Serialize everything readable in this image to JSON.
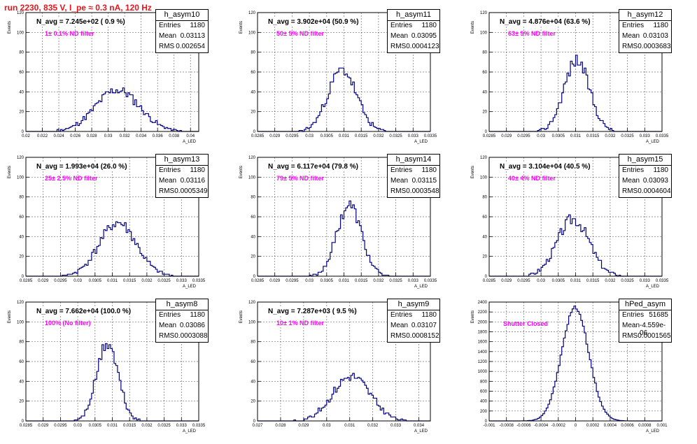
{
  "canvas_title": "run 2230,   835 V, I_pe ≈ 0.3 nA, 120 Hz",
  "colors": {
    "line": "#000080",
    "filter_label": "#ff00ff",
    "title": "#e8141c"
  },
  "chart_data": [
    {
      "type": "bar",
      "name": "h_asym10",
      "title": "h_asym10",
      "navg": "N_avg = 7.245e+02 ( 0.9 %)",
      "filter": "1± 0.1% ND filter",
      "stats": [
        [
          "Entries",
          "1180"
        ],
        [
          "Mean",
          "0.03113"
        ],
        [
          "RMS",
          "0.002654"
        ]
      ],
      "xlabel": "A_LED",
      "ylabel": "Events",
      "xlim": [
        0.02,
        0.041
      ],
      "ylim": [
        0,
        120
      ],
      "xticks": [
        "0.02",
        "0.022",
        "0.024",
        "0.026",
        "0.028",
        "0.03",
        "0.032",
        "0.034",
        "0.036",
        "0.038",
        "0.04"
      ],
      "yticks": [
        "0",
        "20",
        "40",
        "60",
        "80",
        "100",
        "120"
      ],
      "mean": 0.03113,
      "sigma": 0.002654,
      "peak": 42,
      "seed": 11
    },
    {
      "type": "bar",
      "name": "h_asym11",
      "title": "h_asym11",
      "navg": "N_avg = 3.902e+04 (50.9 %)",
      "filter": "50± 5% ND filter",
      "stats": [
        [
          "Entries",
          "1180"
        ],
        [
          "Mean",
          "0.03095"
        ],
        [
          "RMS",
          "0.0004123"
        ]
      ],
      "xlabel": "A_LED",
      "ylabel": "Events",
      "xlim": [
        0.0285,
        0.0335
      ],
      "ylim": [
        0,
        120
      ],
      "xticks": [
        "0.0285",
        "0.029",
        "0.0295",
        "0.03",
        "0.0305",
        "0.031",
        "0.0315",
        "0.032",
        "0.0325",
        "0.033",
        "0.0335"
      ],
      "yticks": [
        "0",
        "20",
        "40",
        "60",
        "80",
        "100",
        "120"
      ],
      "mean": 0.03095,
      "sigma": 0.0004123,
      "peak": 62,
      "seed": 23
    },
    {
      "type": "bar",
      "name": "h_asym12",
      "title": "h_asym12",
      "navg": "N_avg = 4.876e+04 (63.6 %)",
      "filter": "63± 5% ND filter",
      "stats": [
        [
          "Entries",
          "1180"
        ],
        [
          "Mean",
          "0.03103"
        ],
        [
          "RMS",
          "0.0003683"
        ]
      ],
      "xlabel": "A_LED",
      "ylabel": "Events",
      "xlim": [
        0.0285,
        0.0335
      ],
      "ylim": [
        0,
        120
      ],
      "xticks": [
        "0.0285",
        "0.029",
        "0.0295",
        "0.03",
        "0.0305",
        "0.031",
        "0.0315",
        "0.032",
        "0.0325",
        "0.033",
        "0.0335"
      ],
      "yticks": [
        "0",
        "20",
        "40",
        "60",
        "80",
        "100",
        "120"
      ],
      "mean": 0.03103,
      "sigma": 0.0003683,
      "peak": 72,
      "seed": 37
    },
    {
      "type": "bar",
      "name": "h_asym13",
      "title": "h_asym13",
      "navg": "N_avg = 1.993e+04 (26.0 %)",
      "filter": "25± 2.5% ND filter",
      "stats": [
        [
          "Entries",
          "1180"
        ],
        [
          "Mean",
          "0.03116"
        ],
        [
          "RMS",
          "0.0005349"
        ]
      ],
      "xlabel": "A_LED",
      "ylabel": "Events",
      "xlim": [
        0.0285,
        0.0335
      ],
      "ylim": [
        0,
        120
      ],
      "xticks": [
        "0.0285",
        "0.029",
        "0.0295",
        "0.03",
        "0.0305",
        "0.031",
        "0.0315",
        "0.032",
        "0.0325",
        "0.033",
        "0.0335"
      ],
      "yticks": [
        "0",
        "20",
        "40",
        "60",
        "80",
        "100",
        "120"
      ],
      "mean": 0.03116,
      "sigma": 0.0005349,
      "peak": 54,
      "seed": 41
    },
    {
      "type": "bar",
      "name": "h_asym14",
      "title": "h_asym14",
      "navg": "N_avg = 6.117e+04 (79.8 %)",
      "filter": "79± 5% ND filter",
      "stats": [
        [
          "Entries",
          "1180"
        ],
        [
          "Mean",
          "0.03115"
        ],
        [
          "RMS",
          "0.0003548"
        ]
      ],
      "xlabel": "A_LED",
      "ylabel": "Events",
      "xlim": [
        0.0285,
        0.0335
      ],
      "ylim": [
        0,
        120
      ],
      "xticks": [
        "0.0285",
        "0.029",
        "0.0295",
        "0.03",
        "0.0305",
        "0.031",
        "0.0315",
        "0.032",
        "0.0325",
        "0.033",
        "0.0335"
      ],
      "yticks": [
        "0",
        "20",
        "40",
        "60",
        "80",
        "100",
        "120"
      ],
      "mean": 0.03115,
      "sigma": 0.0003548,
      "peak": 72,
      "seed": 53
    },
    {
      "type": "bar",
      "name": "h_asym15",
      "title": "h_asym15",
      "navg": "N_avg = 3.104e+04 (40.5 %)",
      "filter": "40± 4% ND filter",
      "stats": [
        [
          "Entries",
          "1180"
        ],
        [
          "Mean",
          "0.03093"
        ],
        [
          "RMS",
          "0.0004604"
        ]
      ],
      "xlabel": "A_LED",
      "ylabel": "Events",
      "xlim": [
        0.0285,
        0.0335
      ],
      "ylim": [
        0,
        120
      ],
      "xticks": [
        "0.0285",
        "0.029",
        "0.0295",
        "0.03",
        "0.0305",
        "0.031",
        "0.0315",
        "0.032",
        "0.0325",
        "0.033",
        "0.0335"
      ],
      "yticks": [
        "0",
        "20",
        "40",
        "60",
        "80",
        "100",
        "120"
      ],
      "mean": 0.03093,
      "sigma": 0.0004604,
      "peak": 58,
      "seed": 67
    },
    {
      "type": "bar",
      "name": "h_asym8",
      "title": "h_asym8",
      "navg": "N_avg = 7.662e+04 (100.0 %)",
      "filter": "100% (No filter)",
      "stats": [
        [
          "Entries",
          "1180"
        ],
        [
          "Mean",
          "0.03086"
        ],
        [
          "RMS",
          "0.0003088"
        ]
      ],
      "xlabel": "A_LED",
      "ylabel": "Events",
      "xlim": [
        0.0285,
        0.0335
      ],
      "ylim": [
        0,
        120
      ],
      "xticks": [
        "0.0285",
        "0.029",
        "0.0295",
        "0.03",
        "0.0305",
        "0.031",
        "0.0315",
        "0.032",
        "0.0325",
        "0.033",
        "0.0335"
      ],
      "yticks": [
        "0",
        "20",
        "40",
        "60",
        "80",
        "100",
        "120"
      ],
      "mean": 0.03086,
      "sigma": 0.0003088,
      "peak": 78,
      "seed": 71
    },
    {
      "type": "bar",
      "name": "h_asym9",
      "title": "h_asym9",
      "navg": "N_avg = 7.287e+03 ( 9.5 %)",
      "filter": "10± 1% ND filter",
      "stats": [
        [
          "Entries",
          "1180"
        ],
        [
          "Mean",
          "0.03107"
        ],
        [
          "RMS",
          "0.0008152"
        ]
      ],
      "xlabel": "A_LED",
      "ylabel": "Events",
      "xlim": [
        0.027,
        0.0345
      ],
      "ylim": [
        0,
        120
      ],
      "xticks": [
        "0.027",
        "0.028",
        "0.029",
        "0.03",
        "0.031",
        "0.032",
        "0.033",
        "0.034"
      ],
      "yticks": [
        "0",
        "20",
        "40",
        "60",
        "80",
        "100",
        "120"
      ],
      "mean": 0.03107,
      "sigma": 0.0008152,
      "peak": 45,
      "seed": 83
    },
    {
      "type": "bar",
      "name": "hPed_asym",
      "title": "hPed_asym",
      "navg": "",
      "filter": "Shutter Closed",
      "stats": [
        [
          "Entries",
          "51685"
        ],
        [
          "Mean",
          "-4.559e-06"
        ],
        [
          "RMS",
          "0.0001565"
        ]
      ],
      "xlabel": "A_LED",
      "ylabel": "Events",
      "xlim": [
        -0.001,
        0.001
      ],
      "ylim": [
        0,
        2400
      ],
      "xticks": [
        "-0.001",
        "-0.0008",
        "-0.0006",
        "-0.0004",
        "-0.0002",
        "0",
        "0.0002",
        "0.0004",
        "0.0006",
        "0.0008",
        "0.001"
      ],
      "yticks": [
        "0",
        "200",
        "400",
        "600",
        "800",
        "1000",
        "1200",
        "1400",
        "1600",
        "1800",
        "2000",
        "2200",
        "2400"
      ],
      "mean": -4.559e-06,
      "sigma": 0.0001565,
      "peak": 2290,
      "seed": 97
    }
  ]
}
